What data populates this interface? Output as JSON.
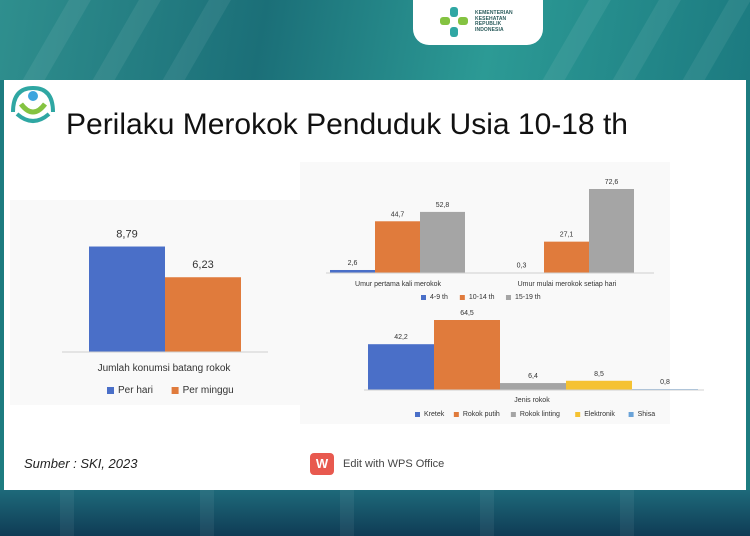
{
  "header": {
    "ministry_lines": [
      "KEMENTERIAN",
      "KESEHATAN",
      "REPUBLIK",
      "INDONESIA"
    ]
  },
  "slide": {
    "title": "Perilaku Merokok Penduduk Usia 10-18 th",
    "source": "Sumber : SKI, 2023",
    "wps_label": "Edit with WPS Office",
    "wps_icon_letter": "W"
  },
  "colors": {
    "blue": "#4a6fc8",
    "orange": "#e07b3c",
    "gray": "#a5a5a5",
    "yellow": "#f5c232",
    "lightblue": "#6aa3d8"
  },
  "chart_data": [
    {
      "type": "bar",
      "xlabel": "Jumlah konumsi batang rokok",
      "categories": [
        ""
      ],
      "series": [
        {
          "name": "Per hari",
          "values": [
            8.79
          ],
          "labels": [
            "8,79"
          ],
          "color": "#4a6fc8"
        },
        {
          "name": "Per minggu",
          "values": [
            6.23
          ],
          "labels": [
            "6,23"
          ],
          "color": "#e07b3c"
        }
      ],
      "legend": "bottom"
    },
    {
      "type": "bar",
      "categories": [
        "Umur pertama kali merokok",
        "Umur mulai merokok setiap hari"
      ],
      "series": [
        {
          "name": "4-9 th",
          "values": [
            2.6,
            0.3
          ],
          "labels": [
            "2,6",
            "0,3"
          ],
          "color": "#4a6fc8"
        },
        {
          "name": "10-14 th",
          "values": [
            44.7,
            27.1
          ],
          "labels": [
            "44,7",
            "27,1"
          ],
          "color": "#e07b3c"
        },
        {
          "name": "15-19 th",
          "values": [
            52.8,
            72.6
          ],
          "labels": [
            "52,8",
            "72,6"
          ],
          "color": "#a5a5a5"
        }
      ],
      "legend": "bottom"
    },
    {
      "type": "bar",
      "xlabel": "Jenis rokok",
      "categories": [
        ""
      ],
      "series": [
        {
          "name": "Kretek",
          "values": [
            42.2
          ],
          "labels": [
            "42,2"
          ],
          "color": "#4a6fc8"
        },
        {
          "name": "Rokok putih",
          "values": [
            64.5
          ],
          "labels": [
            "64,5"
          ],
          "color": "#e07b3c"
        },
        {
          "name": "Rokok linting",
          "values": [
            6.4
          ],
          "labels": [
            "6,4"
          ],
          "color": "#a5a5a5"
        },
        {
          "name": "Elektronik",
          "values": [
            8.5
          ],
          "labels": [
            "8,5"
          ],
          "color": "#f5c232"
        },
        {
          "name": "Shisa",
          "values": [
            0.8
          ],
          "labels": [
            "0,8"
          ],
          "color": "#6aa3d8"
        }
      ],
      "legend": "bottom"
    }
  ]
}
